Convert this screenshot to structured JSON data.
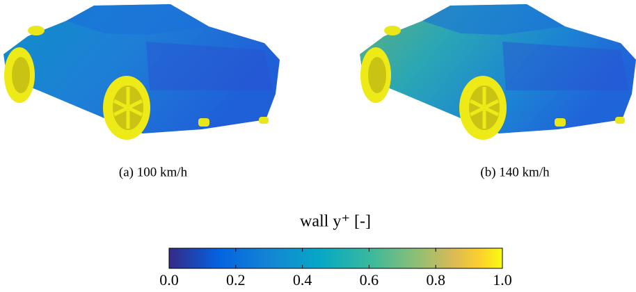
{
  "panels": [
    {
      "caption": "(a) 100 km/h"
    },
    {
      "caption": "(b) 140 km/h"
    }
  ],
  "colorbar": {
    "label": "wall y⁺ [-]",
    "lim": [
      0,
      1
    ],
    "ticks": [
      {
        "value": 0,
        "label": "0.0"
      },
      {
        "value": 0.2,
        "label": "0.2"
      },
      {
        "value": 0.4,
        "label": "0.4"
      },
      {
        "value": 0.6,
        "label": "0.6"
      },
      {
        "value": 0.8,
        "label": "0.8"
      },
      {
        "value": 1,
        "label": "1.0"
      }
    ]
  }
}
